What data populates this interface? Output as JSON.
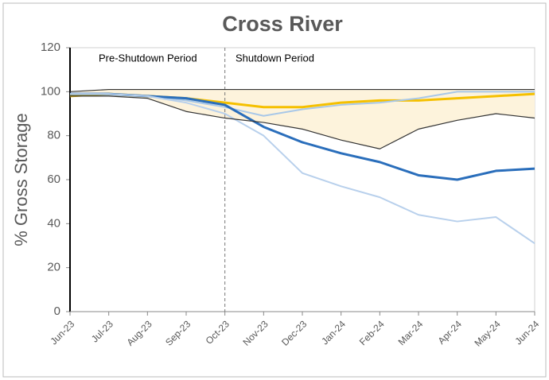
{
  "chart_data": {
    "type": "line",
    "title": "Cross River",
    "y_label": "% Gross Storage",
    "categories": [
      "Jun-23",
      "Jul-23",
      "Aug-23",
      "Sep-23",
      "Oct-23",
      "Nov-23",
      "Dec-23",
      "Jan-24",
      "Feb-24",
      "Mar-24",
      "Apr-24",
      "May-24",
      "Jun-24"
    ],
    "series": [
      {
        "color": "#333333",
        "values": [
          100,
          101,
          101,
          101,
          101,
          101,
          101,
          101,
          101,
          101,
          101,
          101,
          101
        ]
      },
      {
        "color": "#f5c000",
        "values": [
          98,
          99,
          98,
          97,
          95,
          93,
          93,
          95,
          96,
          96,
          97,
          98,
          99
        ]
      },
      {
        "color": "#a9c8e8",
        "values": [
          99,
          99,
          98,
          96,
          93,
          89,
          92,
          94,
          95,
          97,
          100,
          100,
          100
        ]
      },
      {
        "color": "#2a6ebb",
        "values": [
          99,
          99,
          98,
          97,
          94,
          84,
          77,
          72,
          68,
          62,
          60,
          64,
          65
        ]
      },
      {
        "color": "#b8d0ec",
        "values": [
          99,
          99,
          98,
          95,
          90,
          80,
          63,
          57,
          52,
          44,
          41,
          43,
          31
        ]
      },
      {
        "color": "#333333",
        "values": [
          98,
          98,
          97,
          91,
          88,
          86,
          83,
          78,
          74,
          83,
          87,
          90,
          88
        ]
      }
    ],
    "area_color": "#fdf3dc",
    "divider_category": "Oct-23",
    "annotations": [
      "Pre-Shutdown Period",
      "Shutdown Period"
    ],
    "ylim": [
      0,
      120
    ],
    "yticks": [
      0,
      20,
      40,
      60,
      80,
      100,
      120
    ]
  }
}
